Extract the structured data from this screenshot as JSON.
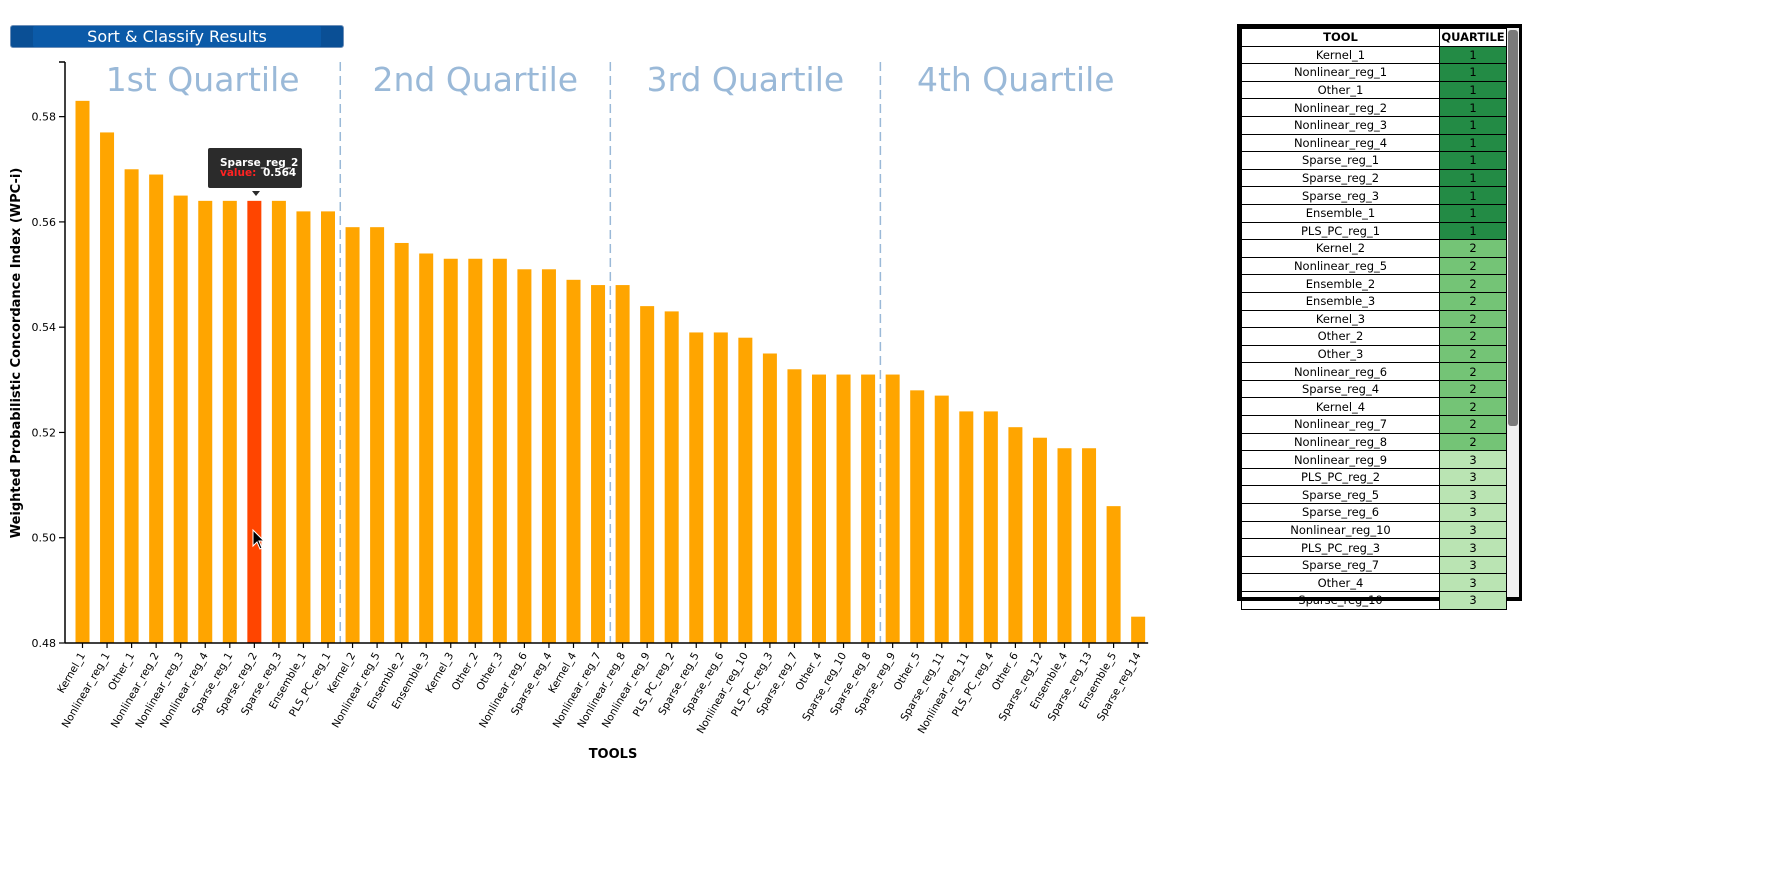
{
  "button": {
    "label": "Sort & Classify Results"
  },
  "chart_data": {
    "type": "bar",
    "ylabel": "Weighted Probabilistic Concordance Index (WPC-i)",
    "xlabel": "TOOLS",
    "ylim": [
      0.48,
      0.59
    ],
    "yticks": [
      0.48,
      0.5,
      0.52,
      0.54,
      0.56,
      0.58
    ],
    "ytick_labels": [
      "0.48",
      "0.50",
      "0.52",
      "0.54",
      "0.56",
      "0.58"
    ],
    "quartile_labels": [
      "1st Quartile",
      "2nd Quartile",
      "3rd Quartile",
      "4th Quartile"
    ],
    "quartile_sizes": [
      11,
      11,
      11,
      11
    ],
    "categories": [
      "Kernel_1",
      "Nonlinear_reg_1",
      "Other_1",
      "Nonlinear_reg_2",
      "Nonlinear_reg_3",
      "Nonlinear_reg_4",
      "Sparse_reg_1",
      "Sparse_reg_2",
      "Sparse_reg_3",
      "Ensemble_1",
      "PLS_PC_reg_1",
      "Kernel_2",
      "Nonlinear_reg_5",
      "Ensemble_2",
      "Ensemble_3",
      "Kernel_3",
      "Other_2",
      "Other_3",
      "Nonlinear_reg_6",
      "Sparse_reg_4",
      "Kernel_4",
      "Nonlinear_reg_7",
      "Nonlinear_reg_8",
      "Nonlinear_reg_9",
      "PLS_PC_reg_2",
      "Sparse_reg_5",
      "Sparse_reg_6",
      "Nonlinear_reg_10",
      "PLS_PC_reg_3",
      "Sparse_reg_7",
      "Other_4",
      "Sparse_reg_10",
      "Sparse_reg_8",
      "Sparse_reg_9",
      "Other_5",
      "Sparse_reg_11",
      "Nonlinear_reg_11",
      "PLS_PC_reg_4",
      "Other_6",
      "Sparse_reg_12",
      "Ensemble_4",
      "Sparse_reg_13",
      "Ensemble_5",
      "Sparse_reg_14"
    ],
    "values": [
      0.583,
      0.577,
      0.57,
      0.569,
      0.565,
      0.564,
      0.564,
      0.564,
      0.564,
      0.562,
      0.562,
      0.559,
      0.559,
      0.556,
      0.554,
      0.553,
      0.553,
      0.553,
      0.551,
      0.551,
      0.549,
      0.548,
      0.548,
      0.544,
      0.543,
      0.539,
      0.539,
      0.538,
      0.535,
      0.532,
      0.531,
      0.531,
      0.531,
      0.531,
      0.528,
      0.527,
      0.524,
      0.524,
      0.521,
      0.519,
      0.517,
      0.517,
      0.506,
      0.485
    ],
    "highlighted_index": 7,
    "bar_color": "#ffa500",
    "highlight_color": "#ff4500",
    "quartile_label_color": "#9ab9d8",
    "divider_color": "#9ab9d8",
    "tooltip": {
      "name": "Sparse_reg_2",
      "value_label": "value:",
      "value": "0.564"
    }
  },
  "table": {
    "headers": [
      "TOOL",
      "QUARTILE"
    ],
    "rows": [
      {
        "tool": "Kernel_1",
        "q": "1"
      },
      {
        "tool": "Nonlinear_reg_1",
        "q": "1"
      },
      {
        "tool": "Other_1",
        "q": "1"
      },
      {
        "tool": "Nonlinear_reg_2",
        "q": "1"
      },
      {
        "tool": "Nonlinear_reg_3",
        "q": "1"
      },
      {
        "tool": "Nonlinear_reg_4",
        "q": "1"
      },
      {
        "tool": "Sparse_reg_1",
        "q": "1"
      },
      {
        "tool": "Sparse_reg_2",
        "q": "1"
      },
      {
        "tool": "Sparse_reg_3",
        "q": "1"
      },
      {
        "tool": "Ensemble_1",
        "q": "1"
      },
      {
        "tool": "PLS_PC_reg_1",
        "q": "1"
      },
      {
        "tool": "Kernel_2",
        "q": "2"
      },
      {
        "tool": "Nonlinear_reg_5",
        "q": "2"
      },
      {
        "tool": "Ensemble_2",
        "q": "2"
      },
      {
        "tool": "Ensemble_3",
        "q": "2"
      },
      {
        "tool": "Kernel_3",
        "q": "2"
      },
      {
        "tool": "Other_2",
        "q": "2"
      },
      {
        "tool": "Other_3",
        "q": "2"
      },
      {
        "tool": "Nonlinear_reg_6",
        "q": "2"
      },
      {
        "tool": "Sparse_reg_4",
        "q": "2"
      },
      {
        "tool": "Kernel_4",
        "q": "2"
      },
      {
        "tool": "Nonlinear_reg_7",
        "q": "2"
      },
      {
        "tool": "Nonlinear_reg_8",
        "q": "2"
      },
      {
        "tool": "Nonlinear_reg_9",
        "q": "3"
      },
      {
        "tool": "PLS_PC_reg_2",
        "q": "3"
      },
      {
        "tool": "Sparse_reg_5",
        "q": "3"
      },
      {
        "tool": "Sparse_reg_6",
        "q": "3"
      },
      {
        "tool": "Nonlinear_reg_10",
        "q": "3"
      },
      {
        "tool": "PLS_PC_reg_3",
        "q": "3"
      },
      {
        "tool": "Sparse_reg_7",
        "q": "3"
      },
      {
        "tool": "Other_4",
        "q": "3"
      },
      {
        "tool": "Sparse_reg_10",
        "q": "3"
      }
    ],
    "quartile_colors": {
      "1": "#238b45",
      "2": "#74c476",
      "3": "#bae4b3",
      "4": "#edf8e9"
    }
  }
}
